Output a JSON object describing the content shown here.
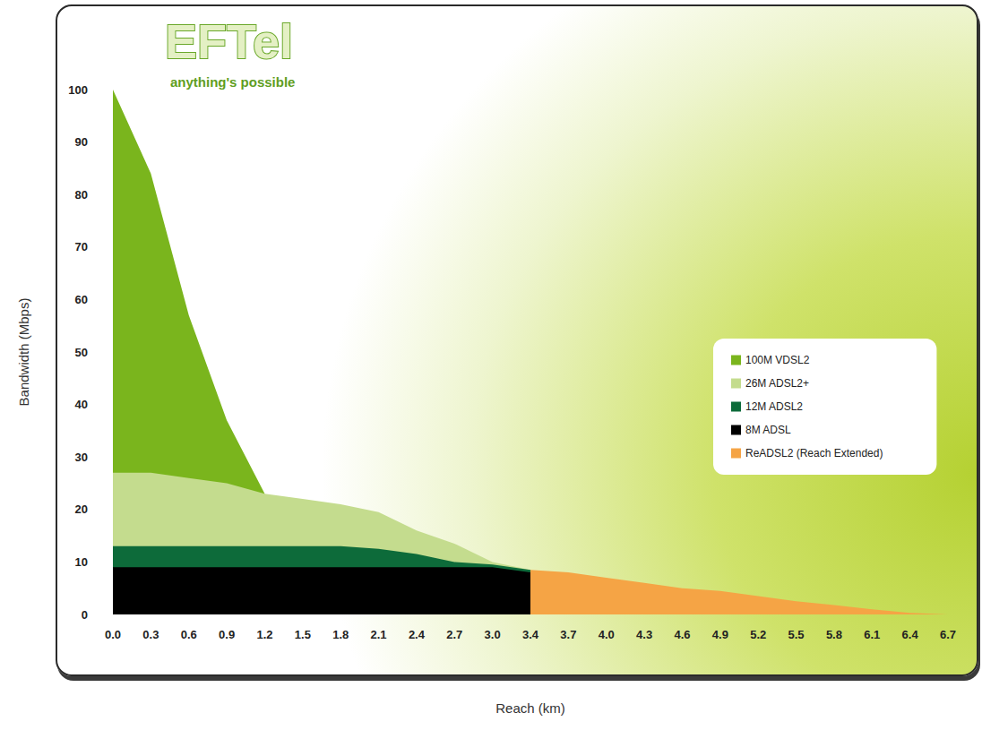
{
  "chart_data": {
    "type": "area",
    "title": "EFTel",
    "subtitle": "anything's possible",
    "x_label": "Reach (km)",
    "y_label": "Bandwidth (Mbps)",
    "categories": [
      "0.0",
      "0.3",
      "0.6",
      "0.9",
      "1.2",
      "1.5",
      "1.8",
      "2.1",
      "2.4",
      "2.7",
      "3.0",
      "3.4",
      "3.7",
      "4.0",
      "4.3",
      "4.6",
      "4.9",
      "5.2",
      "5.5",
      "5.8",
      "6.1",
      "6.4",
      "6.7"
    ],
    "series": [
      {
        "name": "100M VDSL2",
        "color": "#7ab51d",
        "values": [
          100,
          84,
          57,
          37,
          23,
          null,
          null,
          null,
          null,
          null,
          null,
          null,
          null,
          null,
          null,
          null,
          null,
          null,
          null,
          null,
          null,
          null,
          null
        ]
      },
      {
        "name": "26M ADSL2+",
        "color": "#c4dc8e",
        "values": [
          27,
          27,
          26,
          25,
          23,
          22,
          21,
          19.5,
          16,
          13.5,
          10,
          8.5,
          null,
          null,
          null,
          null,
          null,
          null,
          null,
          null,
          null,
          null,
          null
        ]
      },
      {
        "name": "12M ADSL2",
        "color": "#0d6b3a",
        "values": [
          13,
          13,
          13,
          13,
          13,
          13,
          13,
          12.5,
          11.5,
          10,
          9.5,
          8.5,
          null,
          null,
          null,
          null,
          null,
          null,
          null,
          null,
          null,
          null,
          null
        ]
      },
      {
        "name": "8M ADSL",
        "color": "#000000",
        "values": [
          9,
          9,
          9,
          9,
          9,
          9,
          9,
          9,
          9,
          9,
          9,
          8,
          7,
          6,
          5,
          4,
          3,
          1.5,
          0,
          null,
          null,
          null,
          null
        ]
      },
      {
        "name": "ReADSL2 (Reach Extended)",
        "color": "#f5a445",
        "values": [
          null,
          null,
          null,
          null,
          null,
          null,
          null,
          null,
          null,
          null,
          null,
          8.5,
          8,
          7,
          6,
          5,
          4.5,
          3.5,
          2.5,
          1.8,
          1,
          0.3,
          0
        ]
      }
    ],
    "ylim": [
      0,
      100
    ],
    "yticks": [
      0,
      10,
      20,
      30,
      40,
      50,
      60,
      70,
      80,
      90,
      100
    ],
    "grid": false,
    "legend": "right",
    "stacked": false
  }
}
